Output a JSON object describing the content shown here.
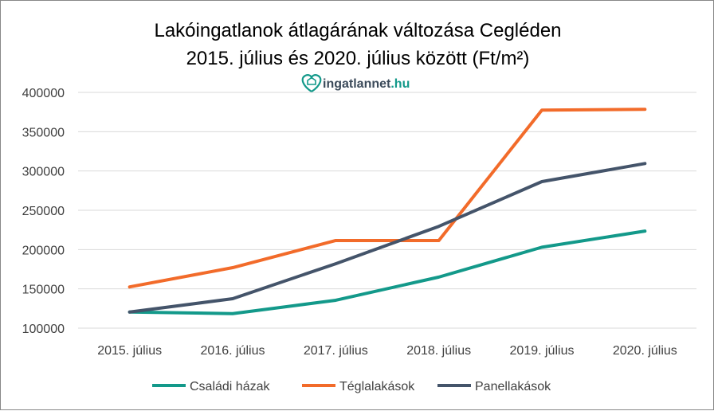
{
  "chart_data": {
    "type": "line",
    "title": [
      "Lakóingatlanok átlagárának változása Cegléden",
      "2015. július és 2020. július között (Ft/m²)"
    ],
    "xlabel": "",
    "ylabel": "",
    "categories": [
      "2015. július",
      "2016. július",
      "2017. július",
      "2018. július",
      "2019. július",
      "2020. július"
    ],
    "ylim": [
      100000,
      400000
    ],
    "yticks": [
      100000,
      150000,
      200000,
      250000,
      300000,
      350000,
      400000
    ],
    "grid": true,
    "legend_position": "bottom",
    "series": [
      {
        "name": "Családi házak",
        "color": "#13998A",
        "values": [
          120500,
          118500,
          135500,
          165000,
          203000,
          223500
        ]
      },
      {
        "name": "Téglalakások",
        "color": "#F26B2A",
        "values": [
          152500,
          177000,
          211500,
          211500,
          377500,
          378500
        ]
      },
      {
        "name": "Panellakások",
        "color": "#44546A",
        "values": [
          120500,
          137500,
          182000,
          229500,
          286500,
          309500
        ]
      }
    ]
  },
  "logo": {
    "name": "ingatlannet",
    "suffix": ".hu",
    "color": "#13998A",
    "text_color": "#3B4A5A"
  }
}
